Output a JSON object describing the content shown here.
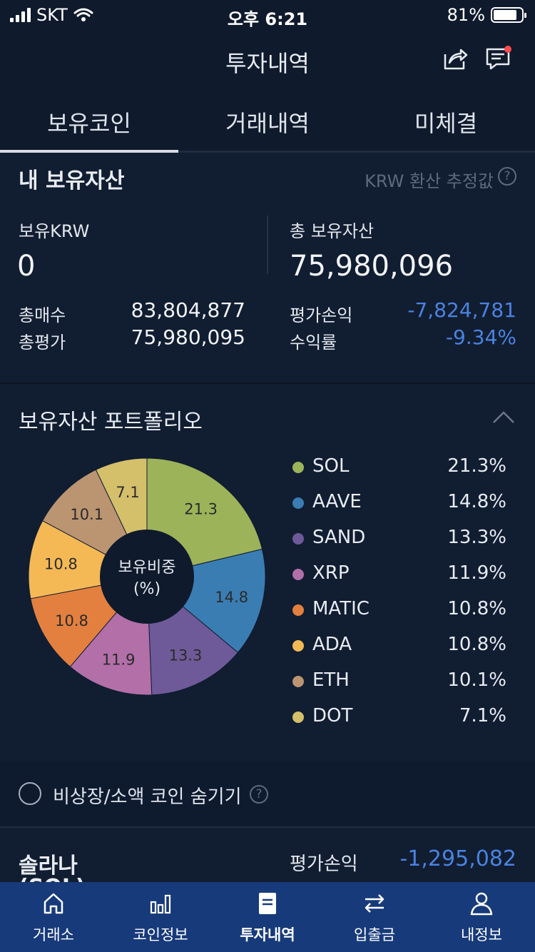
{
  "status_bar": {
    "carrier": "SKT",
    "time": "오후 6:21",
    "battery": "81%"
  },
  "header": {
    "title": "투자내역"
  },
  "tabs": [
    {
      "label": "보유코인",
      "active": true
    },
    {
      "label": "거래내역"
    },
    {
      "label": "미체결"
    }
  ],
  "assets": {
    "title": "내 보유자산",
    "note": "KRW 환산 추정값",
    "krw_label": "보유KRW",
    "krw_value": "0",
    "total_label": "총 보유자산",
    "total_value": "75,980,096",
    "buy_label": "총매수",
    "buy_value": "83,804,877",
    "eval_label": "총평가",
    "eval_value": "75,980,095",
    "pnl_label": "평가손익",
    "pnl_value": "-7,824,781",
    "rate_label": "수익률",
    "rate_value": "-9.34%"
  },
  "portfolio": {
    "title": "보유자산 포트폴리오",
    "center_line1": "보유비중",
    "center_line2": "(%)"
  },
  "chart_data": {
    "type": "pie",
    "categories": [
      "SOL",
      "AAVE",
      "SAND",
      "XRP",
      "MATIC",
      "ADA",
      "ETH",
      "DOT"
    ],
    "values": [
      21.3,
      14.8,
      13.3,
      11.9,
      10.8,
      10.8,
      10.1,
      7.1
    ],
    "labels": [
      "21.3",
      "14.8",
      "13.3",
      "11.9",
      "10.8",
      "10.8",
      "10.1",
      "7.1"
    ],
    "percent_labels": [
      "21.3%",
      "14.8%",
      "13.3%",
      "11.9%",
      "10.8%",
      "10.8%",
      "10.1%",
      "7.1%"
    ],
    "colors": [
      "#9cb35a",
      "#3a7db3",
      "#6e5a98",
      "#b26fa8",
      "#e3803f",
      "#f4b955",
      "#bb9472",
      "#d4bf6b"
    ],
    "legend": "right"
  },
  "hide_toggle": {
    "label": "비상장/소액 코인 숨기기"
  },
  "coin_row": {
    "name": "솔라나",
    "sub": "(SOL)",
    "pnl_label": "평가손익",
    "pnl_value": "-1,295,082"
  },
  "bottom_nav": [
    {
      "label": "거래소",
      "icon": "home-icon"
    },
    {
      "label": "코인정보",
      "icon": "bar-chart-icon"
    },
    {
      "label": "투자내역",
      "icon": "document-icon",
      "active": true
    },
    {
      "label": "입출금",
      "icon": "transfer-icon"
    },
    {
      "label": "내정보",
      "icon": "user-icon"
    }
  ]
}
